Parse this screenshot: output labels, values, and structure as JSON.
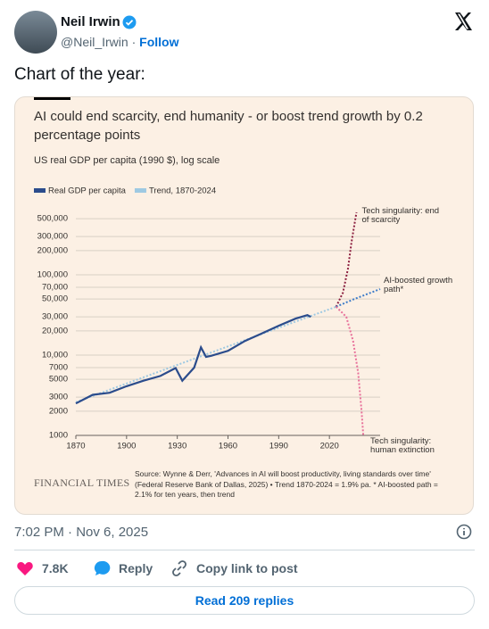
{
  "header": {
    "name": "Neil Irwin",
    "handle": "@Neil_Irwin",
    "follow": "Follow"
  },
  "text": "Chart of the year:",
  "chart_data": {
    "type": "line",
    "title": "AI could end scarcity, end humanity - or boost trend growth by 0.2 percentage points",
    "subtitle": "US real GDP per capita (1990 $), log scale",
    "log_y": true,
    "xlim": [
      1870,
      2050
    ],
    "xticks": [
      1870,
      1900,
      1930,
      1960,
      1990,
      2020
    ],
    "ylim": [
      1000,
      600000
    ],
    "yticks": [
      1000,
      2000,
      3000,
      5000,
      7000,
      {
        "value": 10000,
        "label": "10,000"
      },
      {
        "value": 20000,
        "label": "20,000"
      },
      {
        "value": 30000,
        "label": "30,000"
      },
      {
        "value": 50000,
        "label": "50,000"
      },
      {
        "value": 70000,
        "label": "70,000"
      },
      {
        "value": 100000,
        "label": "100,000"
      },
      {
        "value": 200000,
        "label": "200,000"
      },
      {
        "value": 300000,
        "label": "300,000"
      },
      {
        "value": 500000,
        "label": "500,000"
      }
    ],
    "grid": true,
    "series": [
      {
        "name": "Real GDP per capita",
        "color": "#2b4c8c",
        "style": "solid",
        "x": [
          1870,
          1880,
          1890,
          1900,
          1910,
          1920,
          1929,
          1933,
          1940,
          1944,
          1947,
          1950,
          1960,
          1970,
          1980,
          1990,
          2000,
          2007,
          2009
        ],
        "values": [
          2500,
          3200,
          3400,
          4100,
          4800,
          5500,
          6900,
          4800,
          7000,
          12500,
          9500,
          9800,
          11300,
          15000,
          18600,
          23200,
          28500,
          31500,
          29900
        ]
      },
      {
        "name": "Trend, 1870-2024",
        "color": "#9ec9e2",
        "style": "dotted",
        "x": [
          1870,
          2024
        ],
        "values": [
          2600,
          40000
        ]
      }
    ],
    "scenarios": [
      {
        "label": "Tech singularity: end of scarcity",
        "color": "#8b1e3f",
        "x": [
          2024,
          2028,
          2031,
          2033,
          2035,
          2036
        ],
        "values": [
          40000,
          60000,
          120000,
          250000,
          450000,
          600000
        ]
      },
      {
        "label": "AI-boosted growth path*",
        "color": "#3d7cc9",
        "x": [
          2024,
          2034,
          2050
        ],
        "values": [
          40000,
          49200,
          66500
        ]
      },
      {
        "label": "Tech singularity: human extinction",
        "color": "#e8709a",
        "x": [
          2024,
          2030,
          2034,
          2037,
          2039,
          2040
        ],
        "values": [
          40000,
          30000,
          15000,
          6000,
          2000,
          1000
        ]
      }
    ],
    "brand": "FINANCIAL TIMES",
    "source": "Source: Wynne & Derr, 'Advances in AI will boost productivity, living standards over time' (Federal Reserve Bank of Dallas, 2025) • Trend 1870-2024 = 1.9% pa. * AI-boosted path = 2.1% for ten years, then trend"
  },
  "footer": {
    "timestamp": "7:02 PM · Nov 6, 2025"
  },
  "actions": {
    "likes": "7.8K",
    "reply": "Reply",
    "copy_link": "Copy link to post"
  },
  "read_replies": "Read 209 replies"
}
